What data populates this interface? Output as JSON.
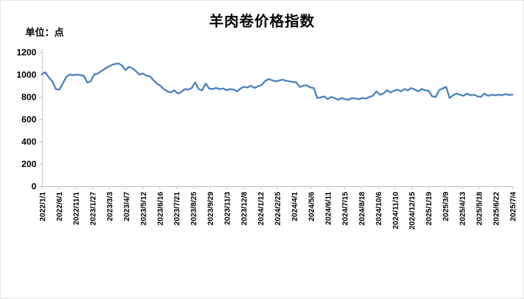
{
  "chart": {
    "title": "羊肉卷价格指数",
    "unit_label": "单位：点",
    "line_color": "#4E81BD",
    "axis_color": "#BFBFBF",
    "text_color": "#000000"
  },
  "chart_data": {
    "type": "line",
    "title": "羊肉卷价格指数",
    "ylabel": "单位：点",
    "ylim": [
      0,
      1200
    ],
    "y_ticks": [
      0,
      200,
      400,
      600,
      800,
      1000,
      1200
    ],
    "grid": false,
    "legend": "none",
    "x_tick_labels": [
      "2022/1/1",
      "2022/6/1",
      "2022/11/1",
      "2023/1/27",
      "2023/3/3",
      "2023/4/7",
      "2023/5/12",
      "2023/6/16",
      "2023/7/21",
      "2023/8/25",
      "2023/9/29",
      "2023/11/3",
      "2023/12/8",
      "2024/1/12",
      "2024/2/25",
      "2024/4/1",
      "2024/5/6",
      "2024/6/11",
      "2024/7/15",
      "2024/8/18",
      "2024/10/6",
      "2024/11/10",
      "2024/12/15",
      "2025/1/19",
      "2025/3/9",
      "2025/4/13",
      "2025/5/18",
      "2025/6/22",
      "2025/7/4"
    ],
    "series": [
      {
        "name": "羊肉卷价格指数",
        "values": [
          1005,
          1020,
          975,
          940,
          870,
          865,
          920,
          980,
          1000,
          995,
          1000,
          995,
          990,
          930,
          940,
          1000,
          1010,
          1030,
          1050,
          1070,
          1085,
          1095,
          1100,
          1080,
          1040,
          1070,
          1055,
          1030,
          1000,
          1010,
          990,
          985,
          950,
          920,
          900,
          870,
          850,
          840,
          860,
          830,
          845,
          870,
          865,
          880,
          930,
          870,
          860,
          920,
          875,
          870,
          880,
          870,
          875,
          860,
          870,
          865,
          850,
          875,
          890,
          885,
          900,
          880,
          895,
          905,
          940,
          960,
          950,
          940,
          945,
          955,
          945,
          940,
          935,
          930,
          890,
          900,
          905,
          885,
          880,
          790,
          795,
          805,
          780,
          800,
          790,
          775,
          790,
          780,
          775,
          790,
          785,
          780,
          790,
          785,
          800,
          810,
          850,
          820,
          830,
          860,
          840,
          855,
          865,
          850,
          870,
          860,
          880,
          865,
          850,
          870,
          860,
          855,
          805,
          800,
          860,
          875,
          890,
          790,
          815,
          830,
          820,
          810,
          830,
          815,
          820,
          805,
          800,
          830,
          810,
          820,
          815,
          820,
          815,
          825,
          818,
          820
        ]
      }
    ]
  }
}
